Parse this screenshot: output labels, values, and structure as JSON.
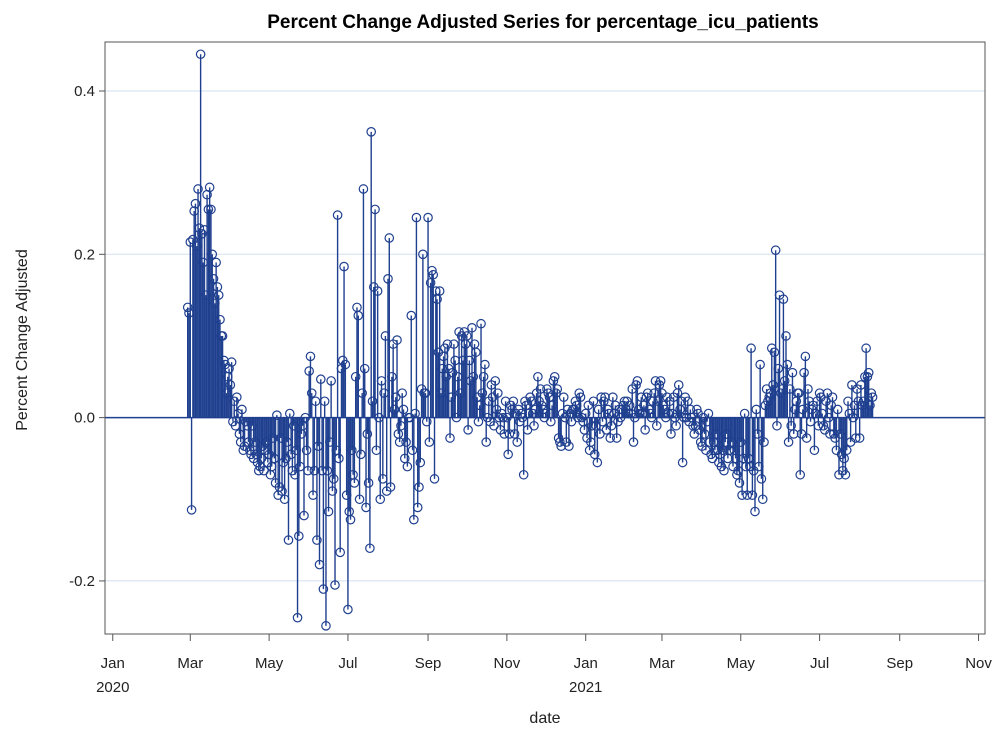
{
  "chart_data": {
    "type": "needle",
    "title": "Percent Change Adjusted Series for percentage_icu_patients",
    "xlabel": "date",
    "ylabel": "Percent Change Adjusted",
    "xlim": [
      "2019-12-26",
      "2021-11-06"
    ],
    "ylim": [
      -0.265,
      0.46
    ],
    "grid": true,
    "x_ticks": [
      {
        "date": "2020-01-01",
        "label": "Jan",
        "year": "2020"
      },
      {
        "date": "2020-03-01",
        "label": "Mar",
        "year": ""
      },
      {
        "date": "2020-05-01",
        "label": "May",
        "year": ""
      },
      {
        "date": "2020-07-01",
        "label": "Jul",
        "year": ""
      },
      {
        "date": "2020-09-01",
        "label": "Sep",
        "year": ""
      },
      {
        "date": "2020-11-01",
        "label": "Nov",
        "year": ""
      },
      {
        "date": "2021-01-01",
        "label": "Jan",
        "year": "2021"
      },
      {
        "date": "2021-03-01",
        "label": "Mar",
        "year": ""
      },
      {
        "date": "2021-05-01",
        "label": "May",
        "year": ""
      },
      {
        "date": "2021-07-01",
        "label": "Jul",
        "year": ""
      },
      {
        "date": "2021-09-01",
        "label": "Sep",
        "year": ""
      },
      {
        "date": "2021-11-01",
        "label": "Nov",
        "year": ""
      }
    ],
    "y_ticks": [
      {
        "value": -0.2,
        "label": "-0.2"
      },
      {
        "value": 0.0,
        "label": "0.0"
      },
      {
        "value": 0.2,
        "label": "0.2"
      },
      {
        "value": 0.4,
        "label": "0.4"
      }
    ],
    "colors": {
      "series": "#1f3f8f",
      "grid": "#d3dff0",
      "axis": "#555555"
    },
    "series": [
      {
        "start_date": "2020-02-28",
        "values": [
          0.135,
          0.128,
          0.215,
          -0.113,
          0.218,
          0.253,
          0.262,
          0.21,
          0.28,
          0.232,
          0.445,
          0.225,
          0.19,
          0.23,
          0.15,
          0.273,
          0.255,
          0.282,
          0.255,
          0.2,
          0.17,
          0.14,
          0.19,
          0.16,
          0.15,
          0.12,
          0.1,
          0.1,
          0.07,
          0.065,
          0.03,
          0.05,
          0.06,
          0.04,
          0.068,
          -0.005,
          0.02,
          -0.01,
          0.025,
          0.005,
          -0.02,
          -0.03,
          0.01,
          -0.04,
          -0.035,
          -0.005,
          -0.01,
          -0.03,
          -0.04,
          -0.045,
          -0.01,
          -0.05,
          -0.03,
          -0.045,
          -0.055,
          -0.065,
          -0.06,
          -0.05,
          -0.035,
          -0.065,
          -0.04,
          -0.03,
          -0.055,
          -0.045,
          -0.07,
          -0.06,
          -0.025,
          -0.05,
          -0.08,
          0.003,
          -0.095,
          -0.085,
          -0.025,
          -0.09,
          -0.055,
          -0.1,
          -0.05,
          -0.03,
          -0.15,
          0.005,
          -0.045,
          -0.065,
          -0.01,
          -0.07,
          -0.04,
          -0.245,
          -0.145,
          -0.06,
          -0.02,
          -0.01,
          -0.12,
          0.0,
          -0.04,
          -0.065,
          0.057,
          0.075,
          0.03,
          -0.095,
          -0.065,
          0.02,
          -0.15,
          -0.035,
          -0.18,
          0.047,
          -0.065,
          -0.21,
          0.02,
          -0.255,
          -0.065,
          -0.115,
          -0.03,
          0.045,
          -0.09,
          -0.075,
          -0.205,
          -0.04,
          0.248,
          -0.05,
          -0.165,
          0.06,
          0.07,
          0.185,
          0.065,
          -0.095,
          -0.235,
          -0.115,
          -0.125,
          -0.04,
          -0.07,
          -0.08,
          0.05,
          0.135,
          0.125,
          -0.1,
          -0.045,
          0.03,
          0.28,
          0.06,
          -0.11,
          -0.02,
          -0.08,
          -0.16,
          0.35,
          0.02,
          0.16,
          0.255,
          -0.04,
          0.155,
          0.0,
          -0.1,
          0.045,
          -0.075,
          0.03,
          0.1,
          -0.09,
          0.17,
          0.22,
          -0.085,
          0.05,
          0.09,
          0.01,
          0.025,
          0.095,
          -0.02,
          -0.03,
          -0.01,
          0.03,
          0.01,
          -0.05,
          -0.03,
          -0.06,
          0.0,
          0.0,
          0.125,
          -0.04,
          -0.125,
          0.005,
          0.245,
          -0.11,
          -0.085,
          -0.055,
          0.035,
          0.2,
          0.03,
          0.03,
          -0.005,
          0.245,
          -0.03,
          0.165,
          0.18,
          0.175,
          -0.075,
          0.155,
          0.145,
          0.08,
          0.155,
          0.03,
          0.06,
          0.075,
          0.085,
          0.05,
          0.09,
          0.06,
          -0.025,
          0.025,
          0.055,
          0.09,
          0.07,
          0.0,
          0.05,
          0.105,
          0.03,
          0.1,
          0.07,
          0.105,
          0.09,
          0.1,
          -0.015,
          0.07,
          0.045,
          0.11,
          0.05,
          0.09,
          0.08,
          0.025,
          -0.005,
          0.015,
          0.115,
          0.03,
          0.05,
          0.065,
          -0.03,
          0.0,
          0.02,
          -0.005,
          0.04,
          0.025,
          -0.01,
          0.045,
          0.01,
          0.03,
          0.0,
          -0.015,
          0.005,
          0.0,
          -0.02,
          0.02,
          0.0,
          -0.045,
          -0.02,
          0.015,
          0.01,
          0.02,
          -0.02,
          0.005,
          -0.03,
          0.01,
          -0.005,
          0.005,
          0.0,
          -0.07,
          0.02,
          0.015,
          -0.015,
          0.005,
          0.025,
          0.02,
          0.005,
          -0.01,
          0.01,
          0.03,
          0.05,
          0.02,
          0.035,
          0.015,
          0.01,
          0.0,
          0.005,
          0.035,
          0.03,
          0.025,
          -0.005,
          0.015,
          0.045,
          0.05,
          0.03,
          0.035,
          -0.025,
          -0.03,
          -0.035,
          0.005,
          0.025,
          0.0,
          -0.03,
          0.01,
          -0.035,
          0.005,
          -0.005,
          0.01,
          0.01,
          0.02,
          0.015,
          0.0,
          0.03,
          0.025,
          0.0,
          -0.005,
          -0.015,
          0.005,
          -0.025,
          0.015,
          -0.04,
          -0.03,
          -0.01,
          0.02,
          -0.045,
          -0.01,
          -0.055,
          0.01,
          -0.02,
          0.025,
          -0.005,
          0.02,
          0.025,
          -0.015,
          0.01,
          0.005,
          -0.025,
          -0.01,
          0.025,
          0.005,
          0.015,
          -0.025,
          -0.005,
          0.01,
          0.0,
          0.01,
          0.015,
          0.02,
          0.01,
          0.02,
          0.005,
          0.015,
          0.005,
          0.035,
          -0.03,
          0.0,
          0.04,
          0.045,
          0.01,
          0.005,
          0.025,
          0.005,
          0.015,
          -0.015,
          0.025,
          0.03,
          0.01,
          0.005,
          0.0,
          0.02,
          0.03,
          0.045,
          -0.01,
          0.02,
          0.04,
          0.045,
          0.03,
          0.015,
          0.01,
          0.0,
          0.025,
          0.005,
          0.02,
          -0.02,
          0.005,
          0.025,
          0.0,
          -0.01,
          0.03,
          0.04,
          0.01,
          0.02,
          -0.055,
          0.0,
          0.025,
          0.0,
          0.02,
          -0.005,
          0.01,
          0.0,
          -0.01,
          -0.02,
          -0.01,
          0.01,
          0.005,
          -0.015,
          -0.03,
          -0.035,
          0.0,
          -0.02,
          -0.04,
          -0.005,
          0.005,
          -0.03,
          -0.045,
          -0.05,
          -0.03,
          -0.04,
          -0.02,
          -0.04,
          -0.055,
          -0.045,
          -0.06,
          -0.04,
          -0.065,
          -0.03,
          -0.02,
          -0.05,
          -0.04,
          -0.04,
          -0.03,
          -0.06,
          -0.04,
          -0.05,
          -0.07,
          -0.065,
          -0.08,
          -0.03,
          -0.095,
          -0.05,
          0.005,
          -0.06,
          -0.095,
          -0.05,
          -0.06,
          0.085,
          -0.095,
          -0.065,
          -0.115,
          0.01,
          -0.02,
          -0.06,
          0.065,
          -0.075,
          -0.1,
          -0.03,
          0.015,
          0.035,
          0.02,
          0.025,
          0.03,
          0.085,
          0.04,
          0.08,
          0.205,
          -0.01,
          0.06,
          0.15,
          0.03,
          0.035,
          0.145,
          0.045,
          0.1,
          0.065,
          -0.03,
          0.035,
          -0.01,
          0.055,
          -0.02,
          0.01,
          0.02,
          0.03,
          0.03,
          -0.07,
          -0.02,
          0.01,
          0.055,
          0.075,
          -0.025,
          0.035,
          0.02,
          -0.005,
          0.01,
          0.015,
          -0.04,
          0.005,
          0.02,
          -0.01,
          0.03,
          0.025,
          0.005,
          -0.01,
          -0.015,
          0.02,
          0.03,
          0.0,
          -0.02,
          0.015,
          0.025,
          -0.02,
          -0.025,
          -0.04,
          0.01,
          -0.07,
          -0.02,
          -0.045,
          -0.065,
          -0.05,
          -0.07,
          -0.04,
          0.02,
          0.005,
          -0.03,
          0.04,
          0.0,
          0.015,
          -0.025,
          0.035,
          0.02,
          -0.025,
          0.04,
          0.015,
          0.02,
          0.05,
          0.085,
          0.05,
          0.055,
          0.015,
          0.03,
          0.025
        ]
      }
    ]
  }
}
